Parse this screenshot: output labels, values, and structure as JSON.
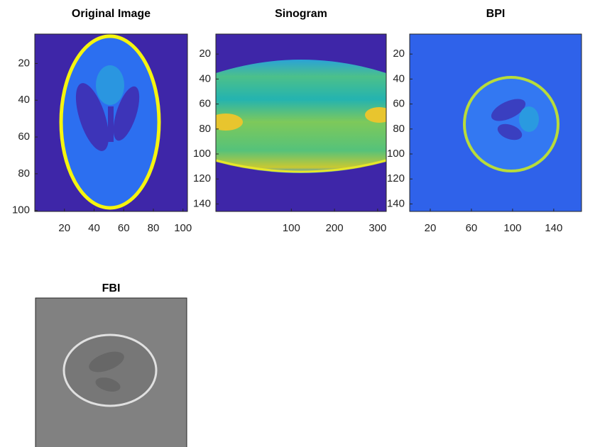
{
  "chart_data": [
    {
      "type": "image",
      "title": "Original Image",
      "xlim": [
        0,
        103
      ],
      "ylim": [
        4,
        100.5
      ],
      "xticks": [
        20,
        40,
        60,
        80,
        100
      ],
      "yticks": [
        20,
        40,
        60,
        80,
        100
      ]
    },
    {
      "type": "image",
      "title": "Sinogram",
      "xlim": [
        -75,
        320
      ],
      "ylim": [
        4,
        146
      ],
      "xticks": [
        100,
        200,
        300
      ],
      "yticks": [
        20,
        40,
        60,
        80,
        100,
        120,
        140
      ]
    },
    {
      "type": "image",
      "title": "BPI",
      "xlim": [
        0,
        167
      ],
      "ylim": [
        4,
        146
      ],
      "xticks": [
        20,
        60,
        100,
        140
      ],
      "yticks": [
        20,
        40,
        60,
        80,
        100,
        120,
        140
      ]
    },
    {
      "type": "image",
      "title": "FBI"
    }
  ]
}
